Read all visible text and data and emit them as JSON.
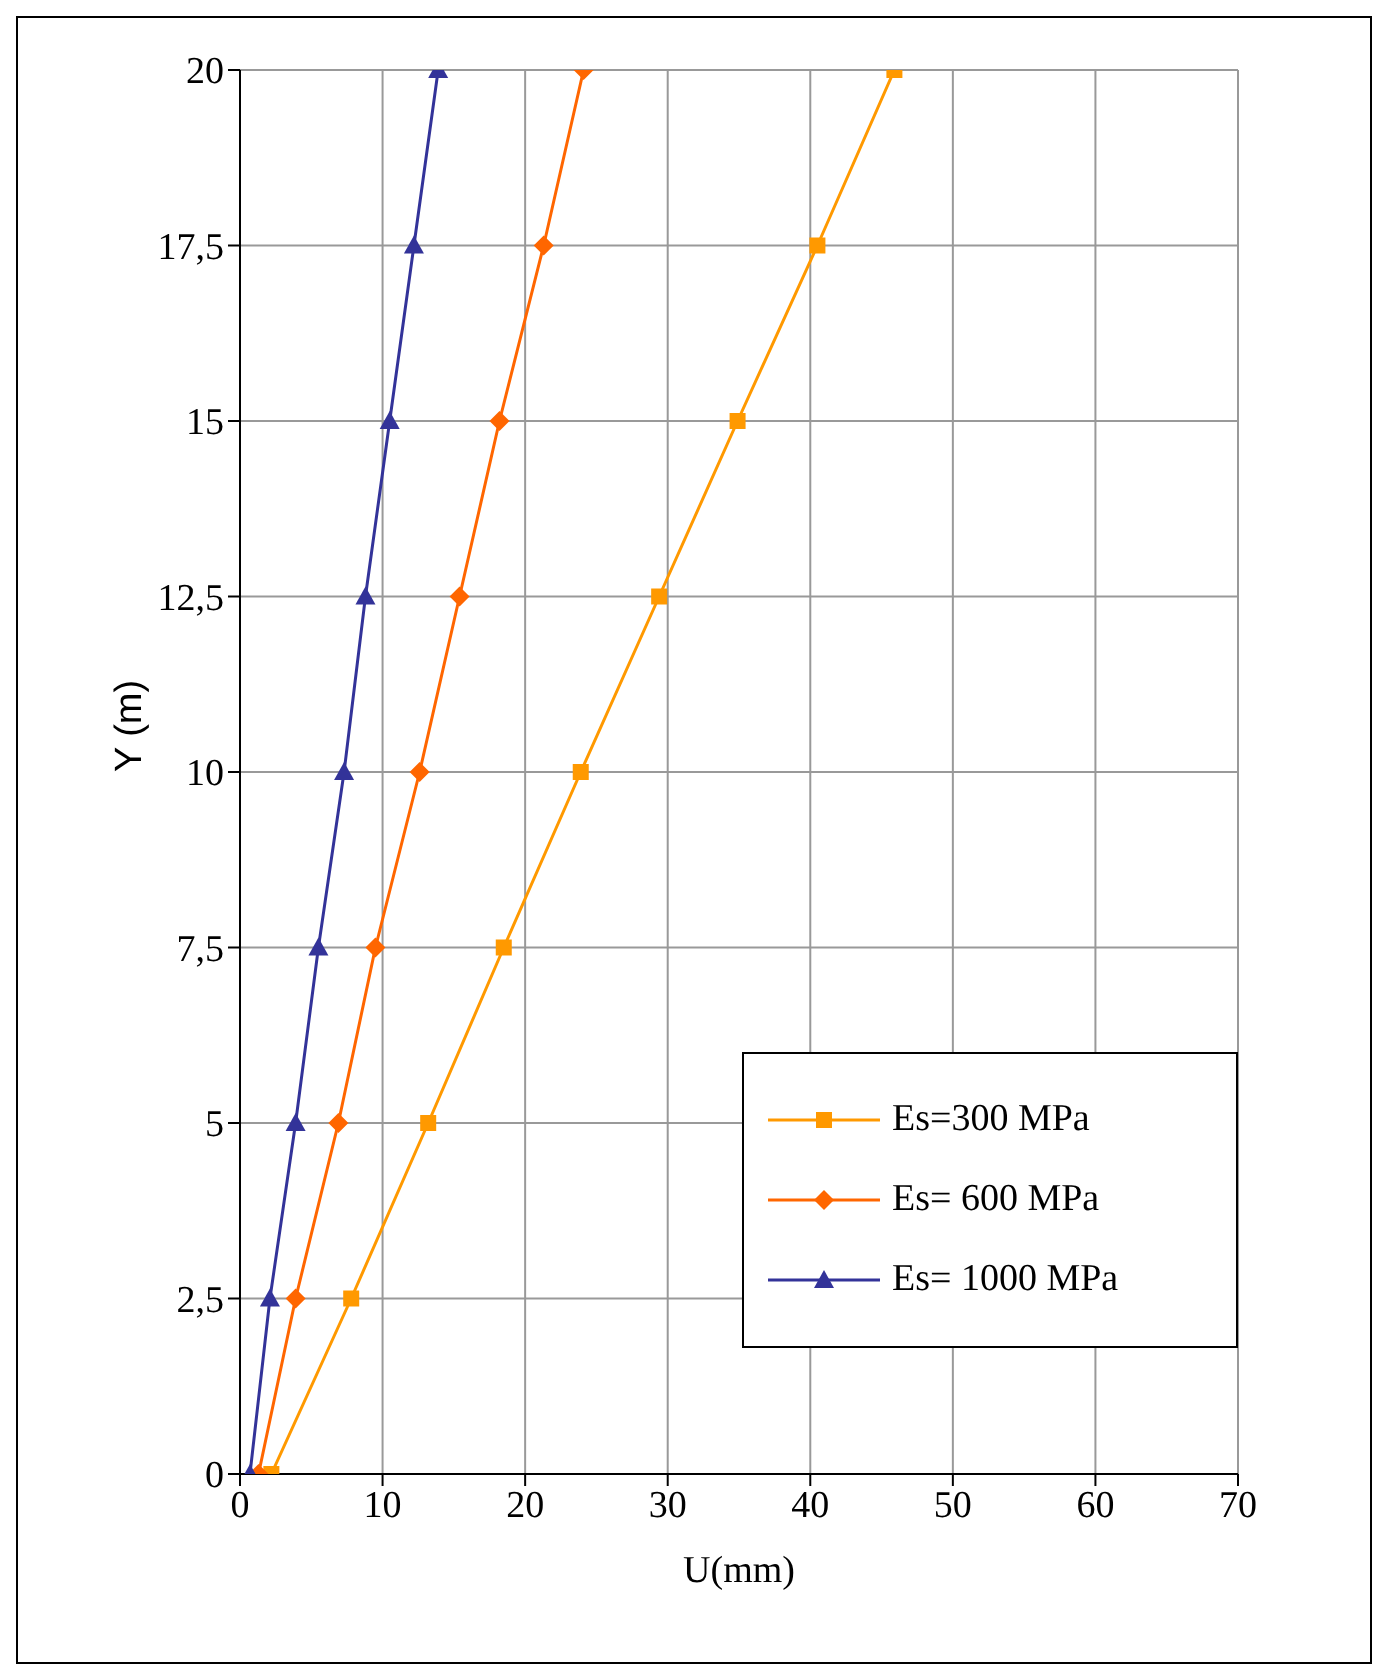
{
  "chart_data": {
    "type": "line",
    "xlabel": "U(mm)",
    "ylabel": "Y (m)",
    "xlim": [
      0,
      70
    ],
    "xticks": [
      0,
      10,
      20,
      30,
      40,
      50,
      60,
      70
    ],
    "ylim": [
      0,
      20
    ],
    "yticks": [
      0,
      {
        "value": 2.5,
        "label": "2,5"
      },
      5,
      {
        "value": 7.5,
        "label": "7,5"
      },
      10,
      {
        "value": 12.5,
        "label": "12,5"
      },
      15,
      {
        "value": 17.5,
        "label": "17,5"
      },
      20
    ],
    "grid": true,
    "legend": "bottom right",
    "line_style": "solid",
    "series": [
      {
        "name": "Es=300 MPa",
        "color": "#ff9900",
        "marker": "square",
        "x": [
          2.2,
          7.8,
          13.2,
          18.5,
          23.9,
          29.4,
          34.9,
          40.5,
          45.9
        ],
        "values": [
          0,
          2.5,
          5,
          7.5,
          10,
          12.5,
          15,
          17.5,
          20
        ]
      },
      {
        "name": "Es= 600 MPa",
        "color": "#ff6600",
        "marker": "diamond",
        "x": [
          1.3,
          3.9,
          6.9,
          9.5,
          12.6,
          15.4,
          18.2,
          21.3,
          24.1
        ],
        "values": [
          0,
          2.5,
          5,
          7.5,
          10,
          12.5,
          15,
          17.5,
          20
        ]
      },
      {
        "name": "Es= 1000 MPa",
        "color": "#333399",
        "marker": "triangle",
        "x": [
          0.7,
          2.1,
          3.9,
          5.5,
          7.3,
          8.8,
          10.5,
          12.2,
          13.9
        ],
        "values": [
          0,
          2.5,
          5,
          7.5,
          10,
          12.5,
          15,
          17.5,
          20
        ]
      }
    ]
  }
}
